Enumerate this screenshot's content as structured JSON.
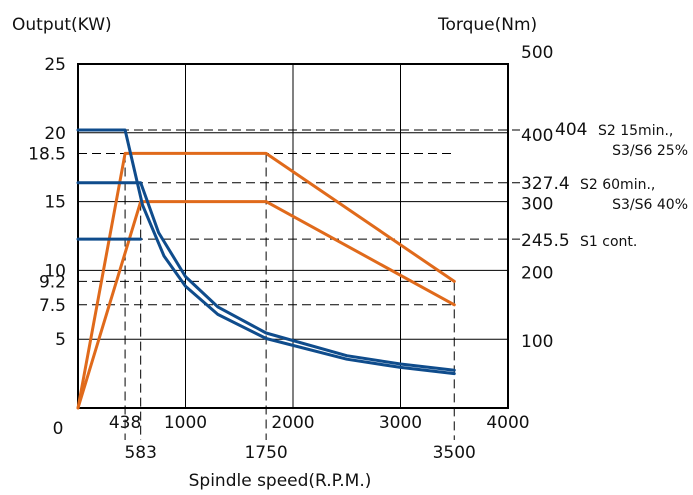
{
  "chart_data": {
    "type": "line",
    "title": "",
    "left_axis": {
      "label": "Output(KW)",
      "ylim": [
        0,
        25
      ],
      "ticks": [
        "25",
        "20",
        "18.5",
        "15",
        "10",
        "9.2",
        "7.5",
        "5"
      ]
    },
    "right_axis": {
      "label": "Torque(Nm)",
      "ylim": [
        0,
        500
      ],
      "ticks": [
        "500",
        "400",
        "300",
        "200",
        "100"
      ]
    },
    "x_axis": {
      "label": "Spindle speed(R.P.M.)",
      "xlim": [
        0,
        4000
      ],
      "ticks_top_row": [
        "0",
        "438",
        "1000",
        "2000",
        "3000",
        "4000"
      ],
      "ticks_bottom_row": [
        "583",
        "1750",
        "3500"
      ]
    },
    "annotations": [
      {
        "value": "404",
        "text1": "S2 15min.,",
        "text2": "S3/S6 25%"
      },
      {
        "value": "327.4",
        "text1": "S2 60min.,",
        "text2": "S3/S6 40%"
      },
      {
        "value": "245.5",
        "text1": "S1 cont.",
        "text2": ""
      }
    ],
    "colors": {
      "output": "#E06A1B",
      "torque": "#0F4C8C",
      "grid": "#000000"
    },
    "series": [
      {
        "axis": "output",
        "points": [
          [
            0,
            0
          ],
          [
            438,
            18.5
          ],
          [
            1750,
            18.5
          ],
          [
            3500,
            9.2
          ]
        ]
      },
      {
        "axis": "output",
        "points": [
          [
            0,
            0
          ],
          [
            583,
            15
          ],
          [
            1750,
            15
          ],
          [
            3500,
            7.5
          ]
        ]
      },
      {
        "axis": "torque",
        "points": [
          [
            0,
            404
          ],
          [
            438,
            404
          ],
          [
            600,
            295
          ],
          [
            800,
            221
          ],
          [
            1000,
            177
          ],
          [
            1300,
            136
          ],
          [
            1750,
            101
          ],
          [
            2500,
            71
          ],
          [
            3000,
            59
          ],
          [
            3500,
            50
          ]
        ]
      },
      {
        "axis": "torque",
        "points": [
          [
            0,
            327.4
          ],
          [
            583,
            327.4
          ],
          [
            750,
            255
          ],
          [
            1000,
            191
          ],
          [
            1300,
            147
          ],
          [
            1750,
            109
          ],
          [
            2500,
            76
          ],
          [
            3000,
            64
          ],
          [
            3500,
            55
          ]
        ]
      },
      {
        "axis": "torque",
        "points": [
          [
            0,
            245.5
          ],
          [
            583,
            245.5
          ]
        ]
      }
    ]
  }
}
